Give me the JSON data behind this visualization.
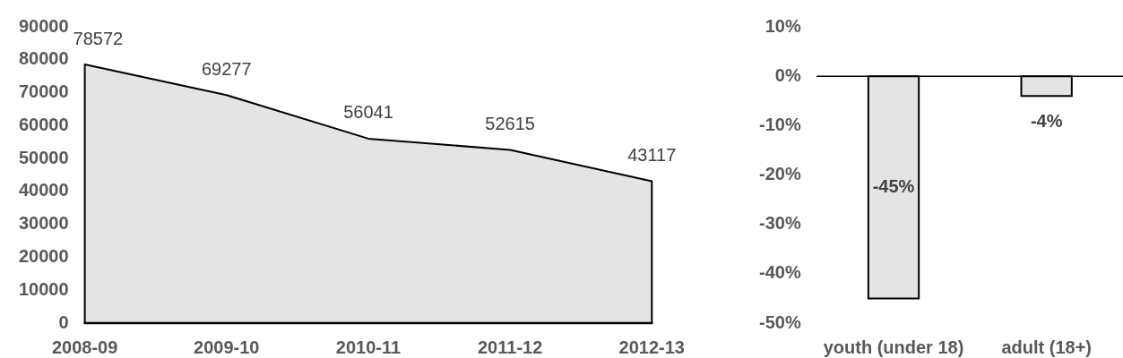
{
  "chart_data": [
    {
      "type": "area",
      "categories": [
        "2008-09",
        "2009-10",
        "2010-11",
        "2011-12",
        "2012-13"
      ],
      "values": [
        78572,
        69277,
        56041,
        52615,
        43117
      ],
      "color": "#e4e4e4",
      "ylim": [
        0,
        90000
      ],
      "yticks": [
        0,
        10000,
        20000,
        30000,
        40000,
        50000,
        60000,
        70000,
        80000,
        90000
      ],
      "data_labels": true
    },
    {
      "type": "bar",
      "categories": [
        "youth (under 18)",
        "adult (18+)"
      ],
      "values": [
        -45,
        -4
      ],
      "color": "#e4e4e4",
      "ylim": [
        -50,
        10
      ],
      "yticks": [
        {
          "value": -50,
          "label": "-50%"
        },
        {
          "value": -40,
          "label": "-40%"
        },
        {
          "value": -30,
          "label": "-30%"
        },
        {
          "value": -20,
          "label": "-20%"
        },
        {
          "value": -10,
          "label": "-10%"
        },
        {
          "value": 0,
          "label": "0%"
        },
        {
          "value": 10,
          "label": "10%"
        }
      ],
      "value_labels": [
        "-45%",
        "-4%"
      ]
    }
  ]
}
